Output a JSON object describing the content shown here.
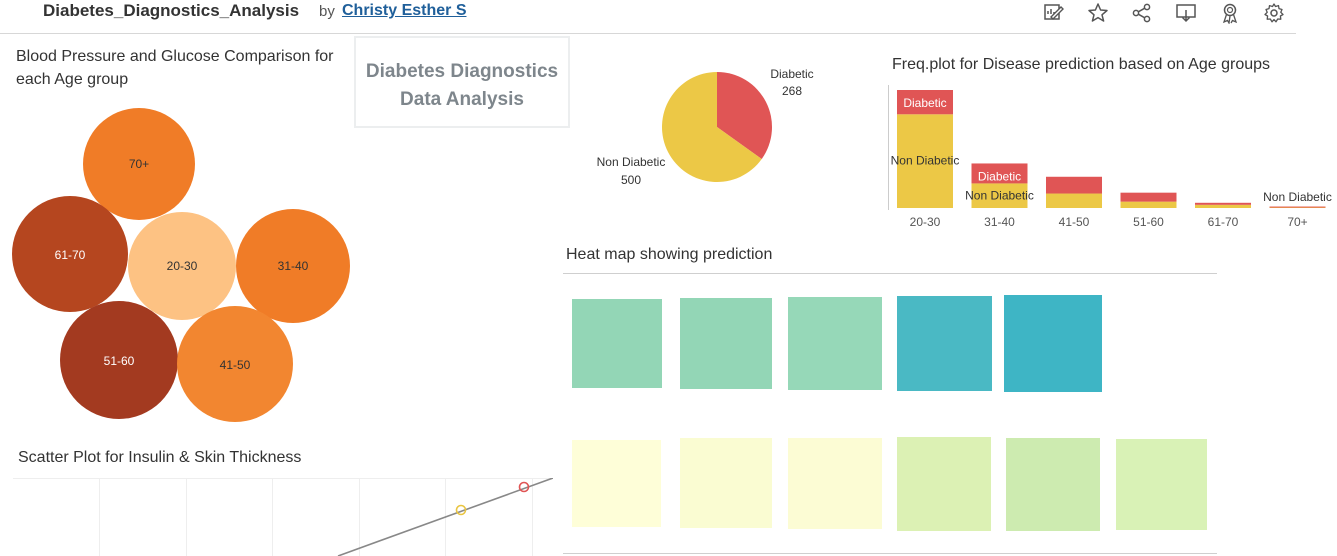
{
  "header": {
    "title": "Diabetes_Diagnostics_Analysis",
    "by": "by",
    "author": "Christy Esther S",
    "toolbar_icons": [
      "edit-icon",
      "star-icon",
      "share-icon",
      "download-icon",
      "award-icon",
      "settings-icon"
    ]
  },
  "title_box": {
    "line1": "Diabetes Diagnostics",
    "line2": "Data Analysis"
  },
  "bubble_chart": {
    "title_line1": "Blood Pressure and Glucose Comparison for",
    "title_line2": "each Age group",
    "bubbles": [
      {
        "label": "70+",
        "color": "#f07c27"
      },
      {
        "label": "61-70",
        "color": "#b5461f"
      },
      {
        "label": "20-30",
        "color": "#fdc283"
      },
      {
        "label": "31-40",
        "color": "#f07c27"
      },
      {
        "label": "51-60",
        "color": "#a33a20"
      },
      {
        "label": "41-50",
        "color": "#f28630"
      }
    ]
  },
  "scatter": {
    "title": "Scatter Plot for Insulin & Skin Thickness",
    "point_colors": [
      "#e9c542",
      "#e05555"
    ],
    "trend_color": "#888888"
  },
  "heatmap": {
    "title": "Heat map showing prediction",
    "row1_colors": [
      "#93d6b6",
      "#93d6b6",
      "#96d8b8",
      "#4ab9c4",
      "#3eb5c5"
    ],
    "row2_colors": [
      "#fefed8",
      "#fafcd2",
      "#fcfcd4",
      "#dcf1b4",
      "#cdebb0",
      "#d9f2b6"
    ]
  },
  "chart_data": [
    {
      "type": "pie",
      "labels": [
        "Diabetic",
        "Non Diabetic"
      ],
      "values": [
        268,
        500
      ],
      "colors": [
        "#e05555",
        "#ecc846"
      ]
    },
    {
      "type": "bar",
      "title": "Freq.plot for Disease prediction based on Age groups",
      "categories": [
        "20-30",
        "31-40",
        "41-50",
        "51-60",
        "61-70",
        "70+"
      ],
      "series": [
        {
          "name": "Non Diabetic",
          "values": [
            324,
            85,
            50,
            22,
            11,
            4
          ],
          "color": "#ecc846"
        },
        {
          "name": "Diabetic",
          "values": [
            84,
            69,
            58,
            31,
            7,
            1
          ],
          "color": "#e05555"
        }
      ],
      "segment_labels": [
        {
          "category": "20-30",
          "series": "Diabetic",
          "text": "Diabetic"
        },
        {
          "category": "20-30",
          "series": "Non Diabetic",
          "text": "Non Diabetic"
        },
        {
          "category": "31-40",
          "series": "Diabetic",
          "text": "Diabetic"
        },
        {
          "category": "31-40",
          "series": "Non Diabetic",
          "text": "Non Diabetic"
        },
        {
          "category": "70+",
          "series": "Non Diabetic",
          "text": "Non Diabetic"
        }
      ]
    }
  ]
}
